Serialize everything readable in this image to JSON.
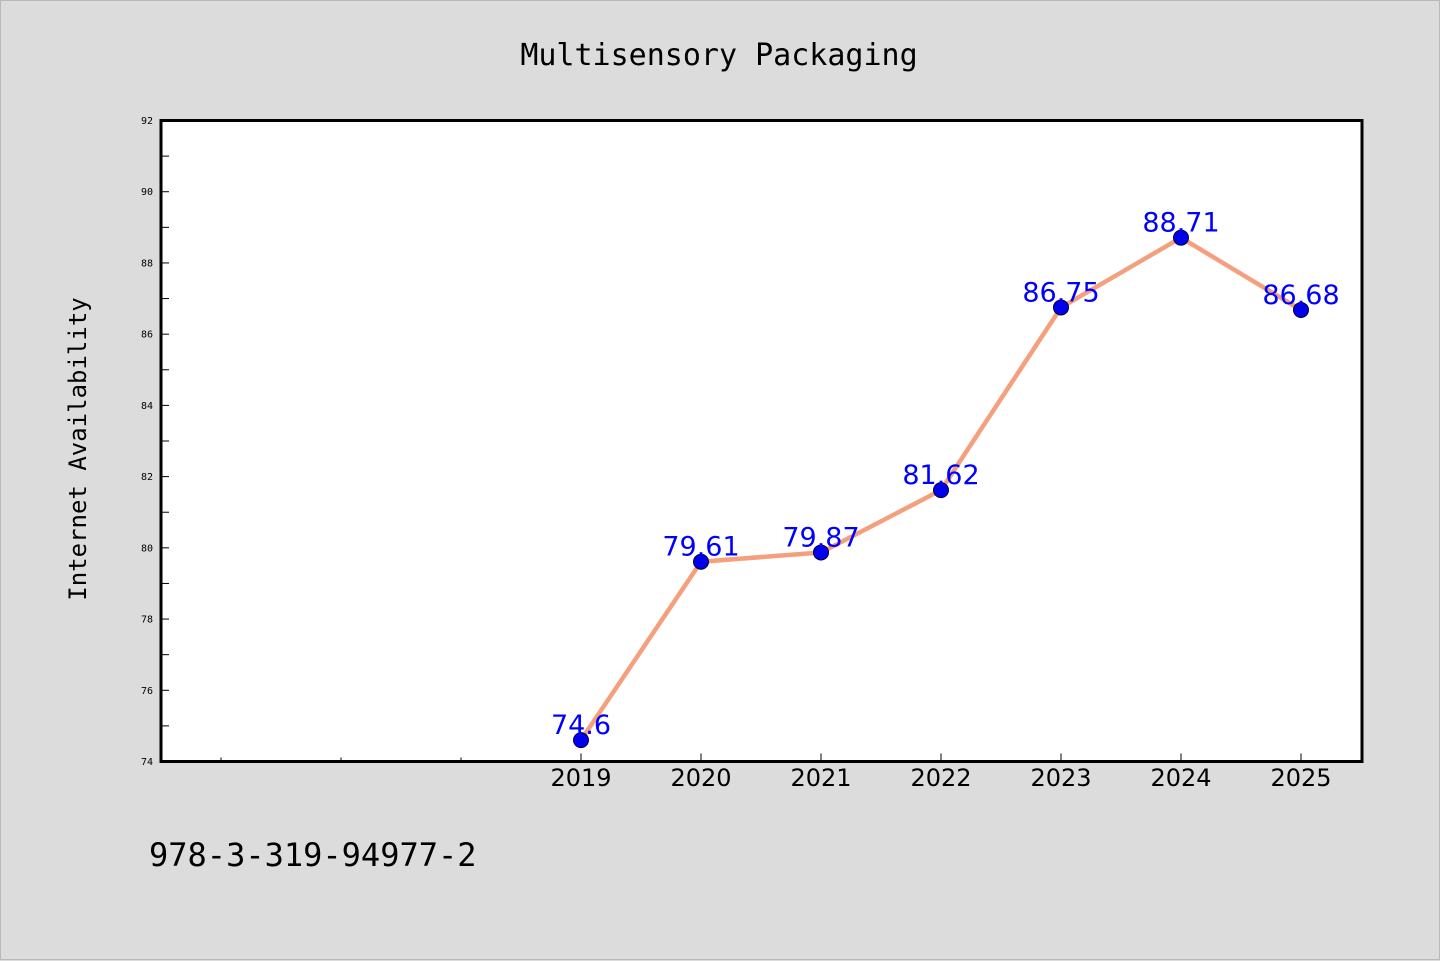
{
  "chart_data": {
    "type": "line",
    "title": "Multisensory Packaging",
    "xlabel": "",
    "ylabel": "Internet Availability",
    "categories": [
      "2019",
      "2020",
      "2021",
      "2022",
      "2023",
      "2024",
      "2025"
    ],
    "values": [
      74.6,
      79.61,
      79.87,
      81.62,
      86.75,
      88.71,
      86.68
    ],
    "data_labels": [
      "74.6",
      "79.61",
      "79.87",
      "81.62",
      "86.75",
      "88.71",
      "86.68"
    ],
    "ylim": [
      74,
      92
    ],
    "yticks": [
      "74",
      "76",
      "78",
      "80",
      "82",
      "84",
      "86",
      "88",
      "90",
      "92"
    ],
    "grid": false,
    "legend": "none",
    "colors": {
      "line": "#f4a07e",
      "marker": "#0000ee",
      "data_label": "#0000ff",
      "background": "#dcdcdc",
      "plot_background": "#ffffff"
    }
  },
  "footer": {
    "code": "978-3-319-94977-2"
  }
}
